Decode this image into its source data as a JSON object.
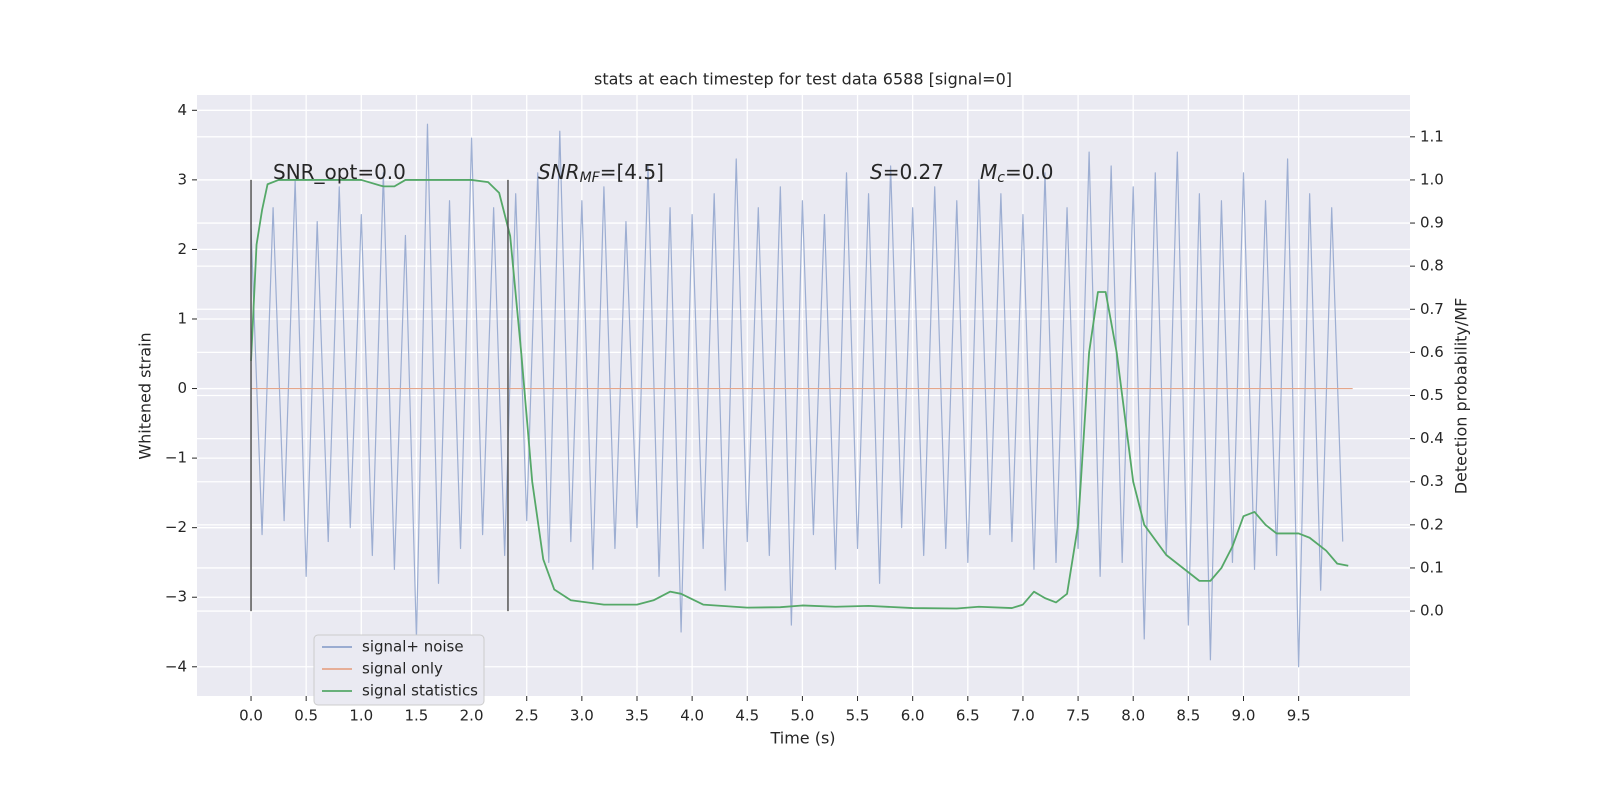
{
  "chart_data": {
    "type": "line",
    "title": "stats at each timestep for test data 6588 [signal=0]",
    "xlabel": "Time (s)",
    "ylabel": "Whitened strain",
    "y2label": "Detection probability/MF",
    "xlim": [
      -0.49,
      10.51
    ],
    "ylim": [
      -4.42,
      4.22
    ],
    "y2lim": [
      -0.197,
      1.197
    ],
    "grid": true,
    "legend": "lower left",
    "xticks": [
      {
        "value": 0,
        "label": "0.0"
      },
      {
        "value": 0.5,
        "label": "0.5"
      },
      {
        "value": 1,
        "label": "1.0"
      },
      {
        "value": 1.5,
        "label": "1.5"
      },
      {
        "value": 2,
        "label": "2.0"
      },
      {
        "value": 2.5,
        "label": "2.5"
      },
      {
        "value": 3,
        "label": "3.0"
      },
      {
        "value": 3.5,
        "label": "3.5"
      },
      {
        "value": 4,
        "label": "4.0"
      },
      {
        "value": 4.5,
        "label": "4.5"
      },
      {
        "value": 5,
        "label": "5.0"
      },
      {
        "value": 5.5,
        "label": "5.5"
      },
      {
        "value": 6,
        "label": "6.0"
      },
      {
        "value": 6.5,
        "label": "6.5"
      },
      {
        "value": 7,
        "label": "7.0"
      },
      {
        "value": 7.5,
        "label": "7.5"
      },
      {
        "value": 8,
        "label": "8.0"
      },
      {
        "value": 8.5,
        "label": "8.5"
      },
      {
        "value": 9,
        "label": "9.0"
      },
      {
        "value": 9.5,
        "label": "9.5"
      }
    ],
    "yticks": [
      {
        "value": -4,
        "label": "−4"
      },
      {
        "value": -3,
        "label": "−3"
      },
      {
        "value": -2,
        "label": "−2"
      },
      {
        "value": -1,
        "label": "−1"
      },
      0,
      1,
      2,
      3,
      4
    ],
    "y2ticks": [
      {
        "value": 0,
        "label": "0.0"
      },
      {
        "value": 0.1,
        "label": "0.1"
      },
      {
        "value": 0.2,
        "label": "0.2"
      },
      {
        "value": 0.3,
        "label": "0.3"
      },
      {
        "value": 0.4,
        "label": "0.4"
      },
      {
        "value": 0.5,
        "label": "0.5"
      },
      {
        "value": 0.6,
        "label": "0.6"
      },
      {
        "value": 0.7,
        "label": "0.7"
      },
      {
        "value": 0.8,
        "label": "0.8"
      },
      {
        "value": 0.9,
        "label": "0.9"
      },
      {
        "value": 1,
        "label": "1.0"
      },
      {
        "value": 1.1,
        "label": "1.1"
      }
    ],
    "series": [
      {
        "name": "signal+ noise",
        "color": "#8fa3cc",
        "axis": "y",
        "x": [
          0.0,
          0.1,
          0.2,
          0.3,
          0.4,
          0.5,
          0.6,
          0.7,
          0.8,
          0.9,
          1.0,
          1.1,
          1.2,
          1.3,
          1.4,
          1.5,
          1.6,
          1.7,
          1.8,
          1.9,
          2.0,
          2.1,
          2.2,
          2.3,
          2.4,
          2.5,
          2.6,
          2.7,
          2.8,
          2.9,
          3.0,
          3.1,
          3.2,
          3.3,
          3.4,
          3.5,
          3.6,
          3.7,
          3.8,
          3.9,
          4.0,
          4.1,
          4.2,
          4.3,
          4.4,
          4.5,
          4.6,
          4.7,
          4.8,
          4.9,
          5.0,
          5.1,
          5.2,
          5.3,
          5.4,
          5.5,
          5.6,
          5.7,
          5.8,
          5.9,
          6.0,
          6.1,
          6.2,
          6.3,
          6.4,
          6.5,
          6.6,
          6.7,
          6.8,
          6.9,
          7.0,
          7.1,
          7.2,
          7.3,
          7.4,
          7.5,
          7.6,
          7.7,
          7.8,
          7.9,
          8.0,
          8.1,
          8.2,
          8.3,
          8.4,
          8.5,
          8.6,
          8.7,
          8.8,
          8.9,
          9.0,
          9.1,
          9.2,
          9.3,
          9.4,
          9.5,
          9.6,
          9.7,
          9.8,
          9.9
        ],
        "values": [
          2.3,
          -2.1,
          2.6,
          -1.9,
          3.0,
          -2.7,
          2.4,
          -2.2,
          2.9,
          -2.0,
          2.5,
          -2.4,
          3.1,
          -2.6,
          2.2,
          -3.6,
          3.8,
          -2.8,
          2.7,
          -2.3,
          3.6,
          -2.1,
          2.6,
          -2.4,
          2.8,
          -1.9,
          3.1,
          -2.5,
          3.7,
          -2.2,
          2.7,
          -2.6,
          2.9,
          -2.3,
          2.4,
          -2.0,
          3.2,
          -2.7,
          2.6,
          -3.5,
          2.5,
          -2.3,
          2.8,
          -2.9,
          3.3,
          -2.2,
          2.6,
          -2.4,
          2.9,
          -3.4,
          2.7,
          -2.1,
          2.5,
          -2.6,
          3.1,
          -2.3,
          2.8,
          -2.8,
          3.2,
          -2.0,
          2.6,
          -2.4,
          2.9,
          -2.3,
          2.7,
          -2.5,
          3.0,
          -2.1,
          2.8,
          -2.2,
          2.5,
          -2.6,
          3.1,
          -2.5,
          2.6,
          -2.3,
          3.4,
          -2.7,
          3.2,
          -2.5,
          2.9,
          -3.6,
          3.1,
          -2.4,
          3.4,
          -3.4,
          2.8,
          -3.9,
          2.7,
          -2.5,
          3.1,
          -2.6,
          2.7,
          -2.4,
          3.3,
          -4.0,
          2.8,
          -2.9,
          2.6,
          -2.2
        ]
      },
      {
        "name": "signal only",
        "color": "#e5a68a",
        "axis": "y",
        "x": [
          0,
          9.99
        ],
        "values": [
          0,
          0
        ]
      },
      {
        "name": "signal statistics",
        "color": "#55a868",
        "axis": "y2",
        "x": [
          0,
          0.05,
          0.1,
          0.15,
          0.25,
          1.0,
          1.2,
          1.3,
          1.4,
          2.0,
          2.15,
          2.25,
          2.35,
          2.45,
          2.55,
          2.65,
          2.75,
          2.9,
          3.2,
          3.5,
          3.65,
          3.8,
          3.9,
          4.1,
          4.5,
          4.8,
          5.0,
          5.3,
          5.6,
          6.0,
          6.4,
          6.6,
          6.9,
          7.0,
          7.1,
          7.2,
          7.3,
          7.4,
          7.5,
          7.6,
          7.68,
          7.75,
          7.85,
          8.0,
          8.1,
          8.3,
          8.5,
          8.6,
          8.7,
          8.8,
          8.9,
          9.0,
          9.1,
          9.2,
          9.3,
          9.5,
          9.6,
          9.75,
          9.85,
          9.95
        ],
        "values": [
          0.58,
          0.85,
          0.93,
          0.99,
          1.0,
          1.0,
          0.985,
          0.985,
          1.0,
          1.0,
          0.995,
          0.97,
          0.87,
          0.6,
          0.3,
          0.12,
          0.05,
          0.025,
          0.015,
          0.015,
          0.025,
          0.045,
          0.04,
          0.015,
          0.008,
          0.009,
          0.013,
          0.01,
          0.012,
          0.007,
          0.006,
          0.01,
          0.007,
          0.015,
          0.045,
          0.03,
          0.02,
          0.04,
          0.2,
          0.6,
          0.74,
          0.74,
          0.6,
          0.3,
          0.2,
          0.13,
          0.09,
          0.07,
          0.07,
          0.1,
          0.15,
          0.22,
          0.23,
          0.2,
          0.18,
          0.18,
          0.17,
          0.14,
          0.11,
          0.105
        ]
      }
    ],
    "vlines": {
      "x": [
        0,
        2.33
      ],
      "y2span": [
        0,
        1
      ],
      "color": "#555555"
    },
    "annotations": [
      {
        "text": "SNR_opt=0.0"
      },
      {
        "base": "SNR",
        "sub": "MF",
        "tail": "=[4.5]"
      },
      {
        "base": "S",
        "tail": "=0.27"
      },
      {
        "base": "M",
        "sub": "c",
        "tail": "=0.0"
      }
    ]
  }
}
